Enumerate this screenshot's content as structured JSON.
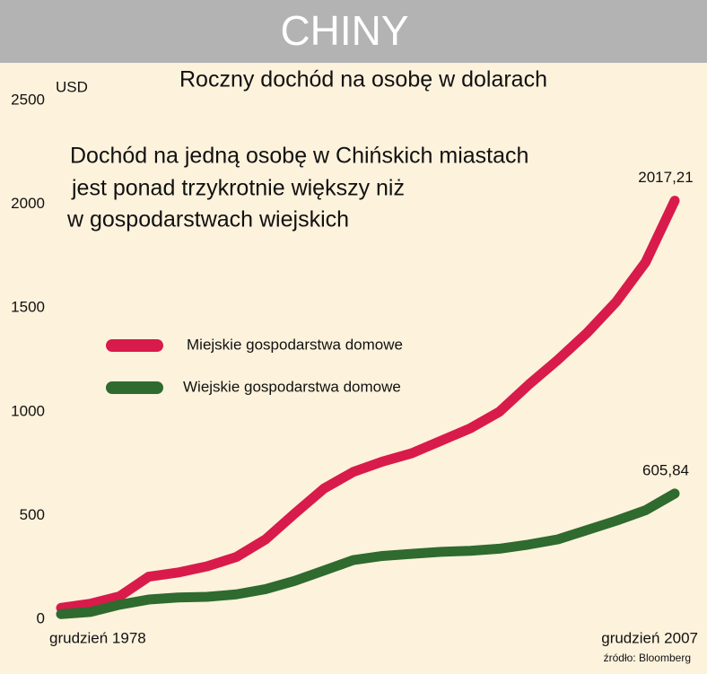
{
  "chart_data": {
    "type": "line",
    "header": "CHINY",
    "title": "Roczny dochód na osobę w dolarach",
    "y_label": "USD",
    "annotation": [
      "Dochód na jedną osobę w Chińskich miastach",
      "jest ponad trzykrotnie większy niż",
      "w gospodarstwach wiejskich"
    ],
    "source": "źródło: Bloomberg",
    "categories": [
      "grudzień 1978",
      null,
      null,
      null,
      null,
      null,
      null,
      null,
      null,
      null,
      null,
      null,
      null,
      null,
      null,
      null,
      null,
      null,
      null,
      null,
      null,
      "grudzień 2007"
    ],
    "series": [
      {
        "name": "Miejskie gospodarstwa domowe",
        "color": "#d81b4a",
        "values": [
          55,
          75,
          110,
          205,
          225,
          255,
          300,
          385,
          510,
          630,
          710,
          760,
          800,
          860,
          920,
          1000,
          1130,
          1250,
          1380,
          1530,
          1720,
          2017.21
        ],
        "value_labels": [
          null,
          null,
          null,
          null,
          null,
          null,
          null,
          null,
          null,
          null,
          null,
          null,
          null,
          null,
          null,
          null,
          null,
          null,
          null,
          null,
          null,
          "2017,21"
        ]
      },
      {
        "name": "Wiejskie gospodarstwa domowe",
        "color": "#2f6a2f",
        "values": [
          25,
          35,
          70,
          95,
          105,
          108,
          120,
          145,
          185,
          235,
          285,
          305,
          315,
          325,
          330,
          340,
          360,
          385,
          430,
          475,
          525,
          605.84
        ],
        "value_labels": [
          null,
          null,
          null,
          null,
          null,
          null,
          null,
          null,
          null,
          null,
          null,
          null,
          null,
          null,
          null,
          null,
          null,
          null,
          null,
          null,
          null,
          "605,84"
        ]
      }
    ],
    "ylim": [
      0,
      2500
    ],
    "yticks": [
      0,
      500,
      1000,
      1500,
      2000,
      2500
    ],
    "grid": false
  }
}
